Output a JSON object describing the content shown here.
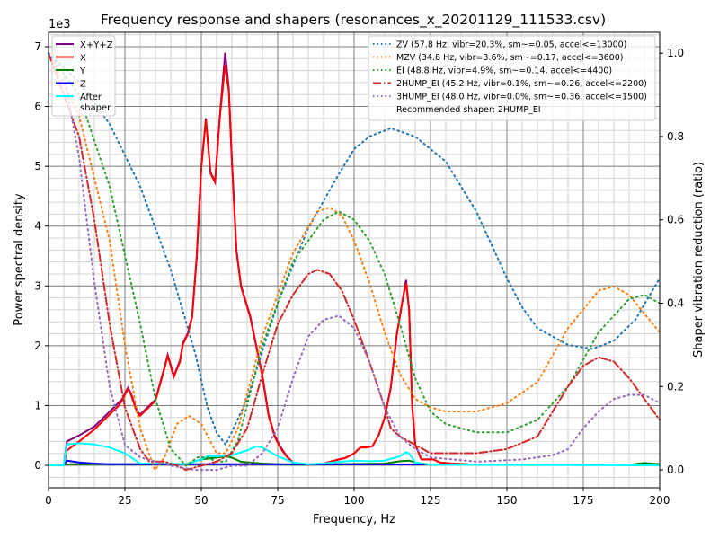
{
  "chart_data": {
    "type": "line",
    "title": "Frequency response and shapers (resonances_x_20201129_111533.csv)",
    "xlabel": "Frequency, Hz",
    "ylabel": "Power spectral density",
    "ylabel_right": "Shaper vibration reduction (ratio)",
    "y_offset_label": "1e3",
    "xlim": [
      0,
      200
    ],
    "ylim": [
      -375,
      7240
    ],
    "ylim_right": [
      -0.043,
      1.05
    ],
    "xticks": [
      0,
      25,
      50,
      75,
      100,
      125,
      150,
      175,
      200
    ],
    "yticks": [
      0,
      1,
      2,
      3,
      4,
      5,
      6,
      7
    ],
    "yticks_right": [
      "0.0",
      "0.2",
      "0.4",
      "0.6",
      "0.8",
      "1.0"
    ],
    "grid": "major and minor",
    "legend_left_placement": "top-left",
    "legend_right_placement": "top-right",
    "psd_series": [
      {
        "name": "X+Y+Z",
        "color": "#800080",
        "x": [
          0,
          5,
          6,
          10,
          15,
          20,
          23,
          24,
          26,
          27,
          29,
          30,
          33,
          35,
          38,
          39,
          41,
          43,
          44,
          45.5,
          47,
          48.5,
          50,
          51.5,
          53,
          54.5,
          56,
          57.8,
          59,
          60,
          61.5,
          63,
          66,
          68,
          70,
          72,
          74,
          76,
          78,
          80,
          85,
          90,
          95,
          97,
          100,
          102,
          104,
          106,
          108,
          110,
          112,
          114,
          116,
          117,
          118,
          119,
          120,
          122,
          124,
          126,
          128,
          132,
          140,
          200
        ],
        "y": [
          0,
          0,
          400,
          500,
          650,
          900,
          1050,
          1100,
          1300,
          1200,
          900,
          850,
          1000,
          1100,
          1650,
          1850,
          1500,
          1750,
          2050,
          2200,
          2500,
          3500,
          5000,
          5800,
          4900,
          4750,
          5800,
          6900,
          6300,
          5100,
          3600,
          3000,
          2500,
          2000,
          1500,
          850,
          500,
          300,
          150,
          50,
          10,
          30,
          100,
          120,
          200,
          300,
          300,
          320,
          500,
          800,
          1300,
          2200,
          2800,
          3100,
          2600,
          1000,
          350,
          100,
          100,
          100,
          50,
          30,
          10,
          10
        ]
      },
      {
        "name": "X",
        "color": "#ff0000",
        "x": [
          0,
          5,
          6,
          10,
          15,
          20,
          23,
          24,
          26,
          27,
          29,
          30,
          33,
          35,
          38,
          39,
          41,
          43,
          44,
          45.5,
          47,
          48.5,
          50,
          51.5,
          53,
          54.5,
          56,
          57.8,
          59,
          60,
          61.5,
          63,
          66,
          68,
          70,
          72,
          74,
          76,
          78,
          80,
          85,
          90,
          95,
          97,
          100,
          102,
          104,
          106,
          108,
          110,
          112,
          114,
          116,
          117,
          118,
          119,
          120,
          122,
          124,
          126,
          128,
          132,
          140,
          200
        ],
        "y": [
          0,
          0,
          250,
          400,
          600,
          850,
          1000,
          1080,
          1280,
          1180,
          880,
          830,
          980,
          1080,
          1630,
          1830,
          1480,
          1730,
          2030,
          2180,
          2480,
          3480,
          4980,
          5780,
          4880,
          4730,
          5780,
          6700,
          6250,
          5080,
          3580,
          2980,
          2480,
          1980,
          1480,
          830,
          480,
          280,
          140,
          40,
          10,
          30,
          100,
          120,
          200,
          300,
          300,
          320,
          500,
          800,
          1300,
          2200,
          2800,
          3050,
          2600,
          1000,
          350,
          100,
          100,
          100,
          50,
          30,
          10,
          10
        ]
      },
      {
        "name": "Y",
        "color": "#008000",
        "x": [
          0,
          5,
          6,
          45,
          50,
          55,
          58,
          60,
          63,
          70,
          80,
          110,
          115,
          118,
          120,
          125,
          190,
          195,
          200
        ],
        "y": [
          0,
          0,
          20,
          20,
          100,
          130,
          150,
          130,
          60,
          30,
          10,
          30,
          70,
          80,
          50,
          10,
          10,
          40,
          20
        ]
      },
      {
        "name": "Z",
        "color": "#0000ff",
        "x": [
          0,
          5,
          6,
          10,
          15,
          20,
          30,
          50,
          200
        ],
        "y": [
          0,
          0,
          80,
          50,
          30,
          20,
          20,
          20,
          10
        ]
      },
      {
        "name": "After\nshaper",
        "color": "#00ffff",
        "x": [
          0,
          5,
          6,
          10,
          15,
          20,
          25,
          28,
          30,
          40,
          45,
          50,
          52,
          55,
          60,
          65,
          68,
          70,
          75,
          80,
          85,
          90,
          95,
          100,
          105,
          110,
          115,
          117,
          118,
          120,
          125,
          200
        ],
        "y": [
          0,
          0,
          350,
          370,
          350,
          300,
          200,
          100,
          30,
          30,
          20,
          100,
          150,
          150,
          170,
          250,
          320,
          300,
          150,
          50,
          20,
          30,
          60,
          80,
          70,
          80,
          150,
          220,
          200,
          50,
          10,
          0
        ]
      }
    ],
    "shaper_series": [
      {
        "name": "ZV (57.8 Hz, vibr=20.3%, sm~=0.05, accel<=13000)",
        "color": "#1f77b4",
        "style": "dotted",
        "x": [
          0,
          10,
          20,
          30,
          40,
          48,
          52,
          55,
          58,
          65,
          75,
          85,
          95,
          100,
          105,
          112,
          120,
          130,
          140,
          150,
          155,
          160,
          170,
          178,
          185,
          192,
          200
        ],
        "y": [
          1.0,
          0.93,
          0.83,
          0.68,
          0.48,
          0.28,
          0.15,
          0.09,
          0.06,
          0.17,
          0.4,
          0.58,
          0.71,
          0.77,
          0.8,
          0.82,
          0.8,
          0.74,
          0.62,
          0.46,
          0.39,
          0.34,
          0.3,
          0.29,
          0.31,
          0.36,
          0.46
        ]
      },
      {
        "name": "MZV (34.8 Hz, vibr=3.6%, sm~=0.17, accel<=3600)",
        "color": "#ff7f0e",
        "style": "dotted",
        "x": [
          0,
          10,
          20,
          25,
          30,
          34.8,
          38,
          42,
          46,
          50,
          55,
          58,
          62,
          70,
          80,
          88,
          92,
          96,
          100,
          105,
          110,
          115,
          120,
          125,
          130,
          140,
          150,
          160,
          170,
          180,
          185,
          190,
          200
        ],
        "y": [
          1.0,
          0.85,
          0.55,
          0.3,
          0.1,
          0.0,
          0.03,
          0.11,
          0.13,
          0.11,
          0.04,
          0.04,
          0.1,
          0.32,
          0.52,
          0.62,
          0.63,
          0.61,
          0.55,
          0.45,
          0.33,
          0.23,
          0.17,
          0.15,
          0.14,
          0.14,
          0.16,
          0.21,
          0.34,
          0.43,
          0.44,
          0.42,
          0.33
        ]
      },
      {
        "name": "EI (48.8 Hz, vibr=4.9%, sm~=0.14, accel<=4400)",
        "color": "#2ca02c",
        "style": "dotted",
        "x": [
          0,
          10,
          20,
          30,
          35,
          40,
          45,
          48.8,
          52,
          55,
          58,
          62,
          70,
          80,
          90,
          95,
          100,
          105,
          110,
          115,
          120,
          125,
          130,
          140,
          145,
          150,
          160,
          170,
          180,
          190,
          195,
          200
        ],
        "y": [
          1.0,
          0.9,
          0.68,
          0.35,
          0.17,
          0.05,
          0.01,
          0.03,
          0.03,
          0.02,
          0.02,
          0.07,
          0.3,
          0.5,
          0.6,
          0.62,
          0.6,
          0.55,
          0.47,
          0.35,
          0.22,
          0.14,
          0.11,
          0.09,
          0.09,
          0.09,
          0.12,
          0.2,
          0.33,
          0.41,
          0.42,
          0.4
        ]
      },
      {
        "name": "2HUMP_EI (45.2 Hz, vibr=0.1%, sm~=0.26, accel<=2200)",
        "color": "#d62728",
        "style": "dashdot",
        "x": [
          0,
          10,
          15,
          20,
          25,
          30,
          33,
          38,
          42,
          45,
          50,
          55,
          60,
          65,
          70,
          75,
          80,
          85,
          88,
          92,
          96,
          100,
          105,
          110,
          112,
          115,
          120,
          125,
          130,
          140,
          150,
          160,
          170,
          175,
          180,
          185,
          190,
          195,
          200
        ],
        "y": [
          1.0,
          0.8,
          0.6,
          0.35,
          0.15,
          0.05,
          0.02,
          0.02,
          0.01,
          0.0,
          0.01,
          0.02,
          0.04,
          0.1,
          0.23,
          0.35,
          0.42,
          0.47,
          0.48,
          0.47,
          0.43,
          0.36,
          0.26,
          0.15,
          0.1,
          0.08,
          0.06,
          0.04,
          0.04,
          0.04,
          0.05,
          0.08,
          0.2,
          0.25,
          0.27,
          0.26,
          0.22,
          0.17,
          0.12
        ]
      },
      {
        "name": "3HUMP_EI (48.0 Hz, vibr=0.0%, sm~=0.36, accel<=1500)",
        "color": "#9467bd",
        "style": "dotted",
        "x": [
          0,
          5,
          10,
          15,
          20,
          25,
          30,
          35,
          40,
          48,
          55,
          60,
          65,
          70,
          75,
          80,
          85,
          90,
          95,
          100,
          105,
          110,
          115,
          120,
          125,
          140,
          155,
          165,
          170,
          175,
          180,
          185,
          190,
          195,
          200
        ],
        "y": [
          1.0,
          0.95,
          0.75,
          0.45,
          0.2,
          0.06,
          0.03,
          0.02,
          0.01,
          0.0,
          0.0,
          0.01,
          0.01,
          0.04,
          0.1,
          0.22,
          0.32,
          0.36,
          0.37,
          0.34,
          0.26,
          0.15,
          0.08,
          0.05,
          0.03,
          0.02,
          0.025,
          0.035,
          0.05,
          0.1,
          0.14,
          0.17,
          0.18,
          0.18,
          0.16
        ]
      }
    ],
    "recommendation": "Recommended shaper: 2HUMP_EI"
  }
}
